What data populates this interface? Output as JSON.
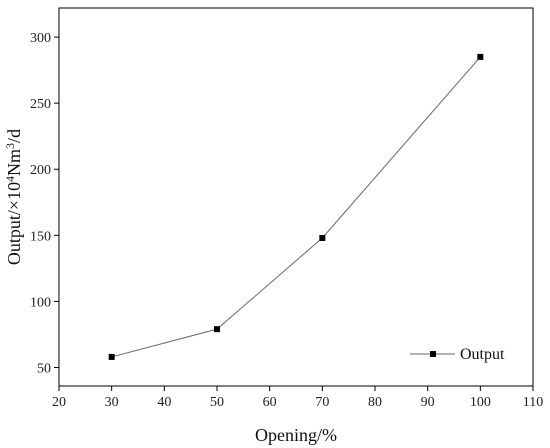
{
  "chart_data": {
    "type": "line",
    "xlabel": "Opening/%",
    "ylabel": {
      "prefix": "Output/×10",
      "sup1": "4",
      "mid": "Nm",
      "sup2": "3",
      "suffix": "/d"
    },
    "xlim": [
      20,
      110
    ],
    "ylim": [
      36,
      322
    ],
    "xticks": [
      20,
      30,
      40,
      50,
      60,
      70,
      80,
      90,
      100,
      110
    ],
    "yticks": [
      50,
      100,
      150,
      200,
      250,
      300
    ],
    "grid": false,
    "legend_position": "bottom-right",
    "series": [
      {
        "name": "Output",
        "color": "#000000",
        "line_color": "#666666",
        "marker": "square",
        "x": [
          30,
          50,
          70,
          100
        ],
        "y": [
          58,
          79,
          148,
          285
        ]
      }
    ]
  }
}
